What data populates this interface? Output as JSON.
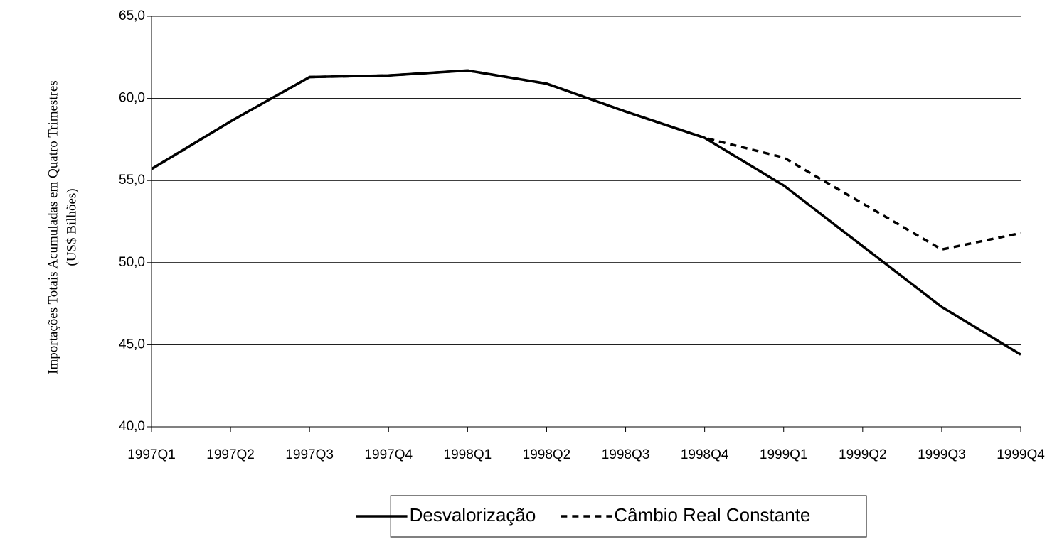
{
  "chart_data": {
    "type": "line",
    "ylabel": [
      "Importações Totais Acumuladas em Quatro Trimestres",
      "(US$ Bilhões)"
    ],
    "categories": [
      "1997Q1",
      "1997Q2",
      "1997Q3",
      "1997Q4",
      "1998Q1",
      "1998Q2",
      "1998Q3",
      "1998Q4",
      "1999Q1",
      "1999Q2",
      "1999Q3",
      "1999Q4"
    ],
    "series": [
      {
        "name": "Desvalorização",
        "color": "#000000",
        "dash": "solid",
        "values": [
          55.7,
          58.6,
          61.3,
          61.4,
          61.7,
          60.9,
          59.2,
          57.6,
          54.7,
          51.0,
          47.3,
          44.4
        ]
      },
      {
        "name": "Câmbio Real Constante",
        "color": "#000000",
        "dash": "dashed",
        "values": [
          55.7,
          58.6,
          61.3,
          61.4,
          61.7,
          60.9,
          59.2,
          57.6,
          56.4,
          53.6,
          50.8,
          51.8
        ]
      }
    ],
    "ylim": [
      40,
      65
    ],
    "yticks": [
      {
        "value": 40,
        "label": "40,0"
      },
      {
        "value": 45,
        "label": "45,0"
      },
      {
        "value": 50,
        "label": "50,0"
      },
      {
        "value": 55,
        "label": "55,0"
      },
      {
        "value": 60,
        "label": "60,0"
      },
      {
        "value": 65,
        "label": "65,0"
      }
    ],
    "grid": true,
    "legend": "bottom"
  }
}
